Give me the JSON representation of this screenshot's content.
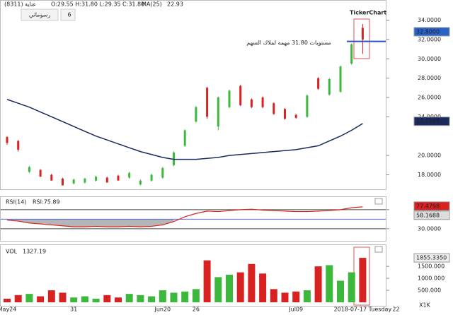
{
  "header": {
    "symbol": "(8311) عناية",
    "ohlc": "O:29.55  H:31.80  L:29.35  C:31.80",
    "ma": "MA(25)",
    "ma_value": "22.93",
    "drawings_button": "رسوماتي",
    "count_button": "6",
    "logo": "TickerChart"
  },
  "chart_data": [
    {
      "type": "ohlc",
      "up_color": "#3cb83c",
      "down_color": "#d82222",
      "ylim": [
        16.5,
        35.5
      ],
      "yticks": [
        {
          "value": 18,
          "label": "18.0000"
        },
        {
          "value": 20,
          "label": "20.0000"
        },
        {
          "value": 24,
          "label": "24.0000"
        },
        {
          "value": 26,
          "label": "26.0000"
        },
        {
          "value": 28,
          "label": "28.0000"
        },
        {
          "value": 30,
          "label": "30.0000"
        },
        {
          "value": 32,
          "label": "32.0000"
        },
        {
          "value": 34,
          "label": "34.0000"
        }
      ],
      "open": [
        21.9,
        21.5,
        18.3,
        18.5,
        18.0,
        17.6,
        17.1,
        17.2,
        17.4,
        17.7,
        17.9,
        17.7,
        17.0,
        17.4,
        17.7,
        19.0,
        21.0,
        23.5,
        27.0,
        23.0,
        25.0,
        27.2,
        25.8,
        26.0,
        25.4,
        24.8,
        24.2,
        24.0,
        28.0,
        26.3,
        26.6,
        29.5,
        33.2,
        null,
        null,
        null
      ],
      "high": [
        22.0,
        21.6,
        18.9,
        18.6,
        18.1,
        17.7,
        17.6,
        17.7,
        17.9,
        17.8,
        18.0,
        18.3,
        17.5,
        18.1,
        18.8,
        20.4,
        22.7,
        25.1,
        27.1,
        26.1,
        26.8,
        27.3,
        25.9,
        26.1,
        25.5,
        24.9,
        24.3,
        26.3,
        28.1,
        28.0,
        29.3,
        31.6,
        33.6,
        null,
        null,
        null
      ],
      "low": [
        21.1,
        20.4,
        18.2,
        17.8,
        17.4,
        16.9,
        17.0,
        17.1,
        17.3,
        17.2,
        17.4,
        17.6,
        16.9,
        17.3,
        17.6,
        18.9,
        20.9,
        23.4,
        23.8,
        22.6,
        24.9,
        25.1,
        24.9,
        24.9,
        24.2,
        23.7,
        23.8,
        23.9,
        26.8,
        26.2,
        26.5,
        29.4,
        30.5,
        null,
        null,
        null
      ],
      "close": [
        21.3,
        20.6,
        18.8,
        17.8,
        17.4,
        16.9,
        17.5,
        17.6,
        17.8,
        17.2,
        17.4,
        18.2,
        17.4,
        18.0,
        18.7,
        20.3,
        22.6,
        25.0,
        24.0,
        26.0,
        26.7,
        25.2,
        25.0,
        25.0,
        24.3,
        23.8,
        23.9,
        26.2,
        26.9,
        27.9,
        29.2,
        31.5,
        32.0,
        null,
        null,
        null
      ],
      "series": [
        {
          "name": "MA(25)",
          "color": "#1a2a5e",
          "values": [
            25.8,
            25.4,
            25.0,
            24.5,
            24.0,
            23.5,
            23.0,
            22.5,
            22.0,
            21.6,
            21.2,
            20.8,
            20.4,
            20.1,
            19.8,
            19.6,
            19.6,
            19.6,
            19.7,
            19.8,
            20.0,
            20.1,
            20.2,
            20.3,
            20.4,
            20.5,
            20.6,
            20.8,
            21.0,
            21.5,
            22.0,
            22.6,
            23.3,
            null,
            null,
            null
          ]
        }
      ],
      "markers": [
        {
          "value": 32.8,
          "label": "32.8000",
          "color": "#2a63c8"
        },
        {
          "value": 23.5348,
          "label": "23.5348",
          "color": "#1a2a5e"
        }
      ],
      "level": 31.8,
      "level_color": "#2a50d0",
      "annotation": "مستويات 31.80 مهمه لملاك السهم"
    },
    {
      "type": "line",
      "title": "RSI(14)",
      "subtitle": "RSI:75.89",
      "ylim": [
        6,
        95
      ],
      "yticks": [
        {
          "value": 30,
          "label": "30.0000"
        },
        {
          "value": 70,
          "label": "70.0000"
        }
      ],
      "mid_level": 50,
      "series": [
        {
          "name": "RSI",
          "color": "#d82222",
          "values": [
            48,
            46,
            42,
            40,
            38,
            36,
            34,
            34,
            35,
            34,
            34,
            35,
            34,
            35,
            38,
            45,
            55,
            62,
            67,
            66,
            68,
            70,
            71,
            69,
            68,
            67,
            66,
            66,
            67,
            68,
            70,
            74,
            75.89,
            null,
            null,
            null
          ]
        }
      ],
      "markers": [
        {
          "value": 77.4798,
          "label": "77.4798",
          "color": "#d82222"
        },
        {
          "value": 58.1688,
          "label": "58.1688",
          "color": "#dddddd"
        }
      ]
    },
    {
      "type": "bar",
      "title": "VOL",
      "subtitle": "1327.19",
      "ylim": [
        0,
        2300
      ],
      "yticks": [
        {
          "value": 500,
          "label": "500.000"
        },
        {
          "value": 1000,
          "label": "1000.000"
        },
        {
          "value": 1500,
          "label": "1500.000"
        }
      ],
      "unit_label": "X1K",
      "categories": [
        "May24",
        null,
        null,
        null,
        null,
        null,
        "31",
        null,
        null,
        null,
        null,
        null,
        null,
        null,
        "Jun20",
        null,
        null,
        "26",
        null,
        null,
        null,
        null,
        null,
        null,
        null,
        null,
        "Jul09",
        null,
        null,
        null,
        null,
        null,
        "2018-07-17 Tuesday",
        null,
        null,
        "22"
      ],
      "values": [
        150,
        300,
        350,
        250,
        500,
        400,
        200,
        250,
        150,
        300,
        200,
        350,
        300,
        250,
        500,
        400,
        450,
        550,
        1750,
        1050,
        1150,
        1250,
        1600,
        1200,
        550,
        400,
        450,
        500,
        1500,
        1550,
        900,
        1250,
        1855.335,
        null,
        null,
        null
      ],
      "markers": [
        {
          "value": 1855.335,
          "label": "1855.3350",
          "color": "#eeeeee"
        }
      ]
    }
  ]
}
